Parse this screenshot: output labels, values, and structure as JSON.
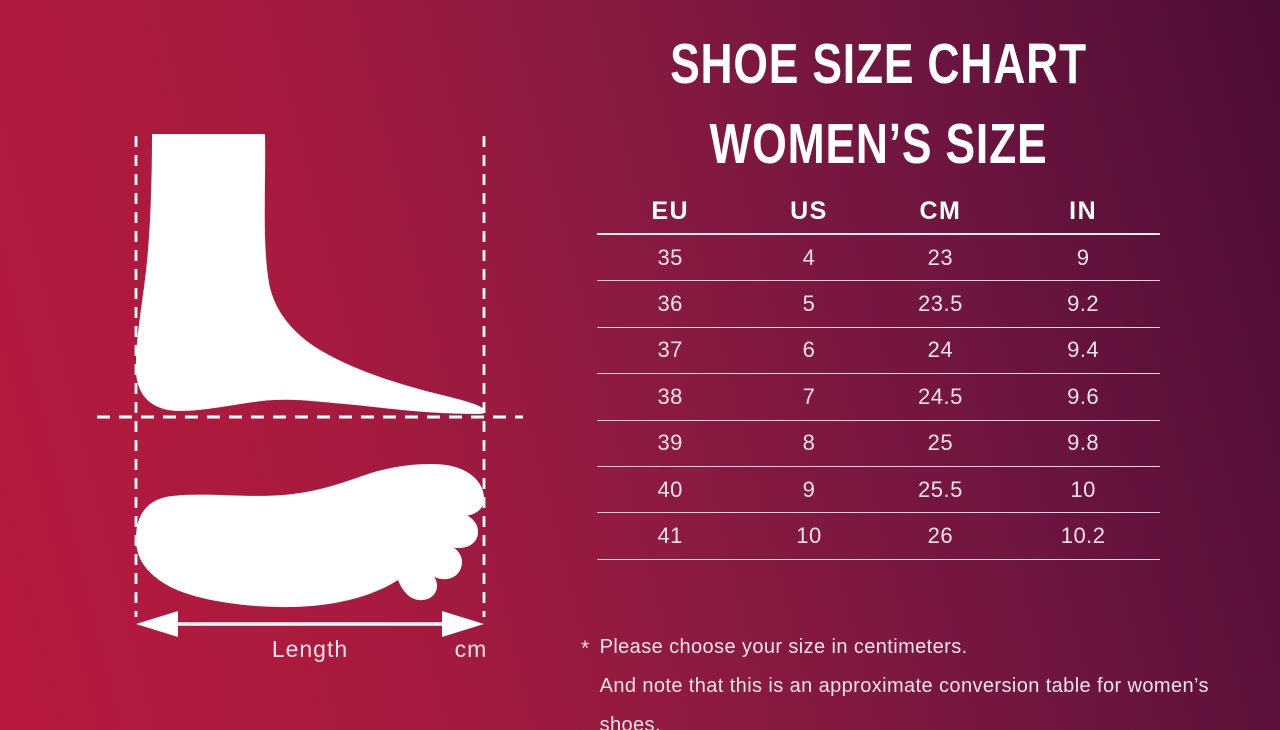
{
  "title": {
    "line1": "SHOE SIZE CHART",
    "line2": "WOMEN’S SIZE"
  },
  "chart_data": {
    "type": "table",
    "title": "Shoe Size Chart — Women's Size",
    "columns": [
      "EU",
      "US",
      "CM",
      "IN"
    ],
    "rows": [
      [
        35,
        4,
        23,
        9
      ],
      [
        36,
        5,
        23.5,
        9.2
      ],
      [
        37,
        6,
        24,
        9.4
      ],
      [
        38,
        7,
        24.5,
        9.6
      ],
      [
        39,
        8,
        25,
        9.8
      ],
      [
        40,
        9,
        25.5,
        10
      ],
      [
        41,
        10,
        26,
        10.2
      ]
    ]
  },
  "diagram": {
    "length_label": "Length",
    "unit_label": "cm"
  },
  "note": {
    "marker": "*",
    "line1": "Please choose your size in centimeters.",
    "line2": "And note that this is an approximate conversion table for women’s shoes."
  },
  "colors": {
    "bg_left": "#b7193d",
    "bg_mid": "#8c1a40",
    "bg_right": "#4c0d33",
    "foot": "#ffffff",
    "dashed_line": "#ffffff",
    "table_line": "#ecd2db",
    "text": "#ffffff",
    "soft_text": "#f6e3ea"
  }
}
